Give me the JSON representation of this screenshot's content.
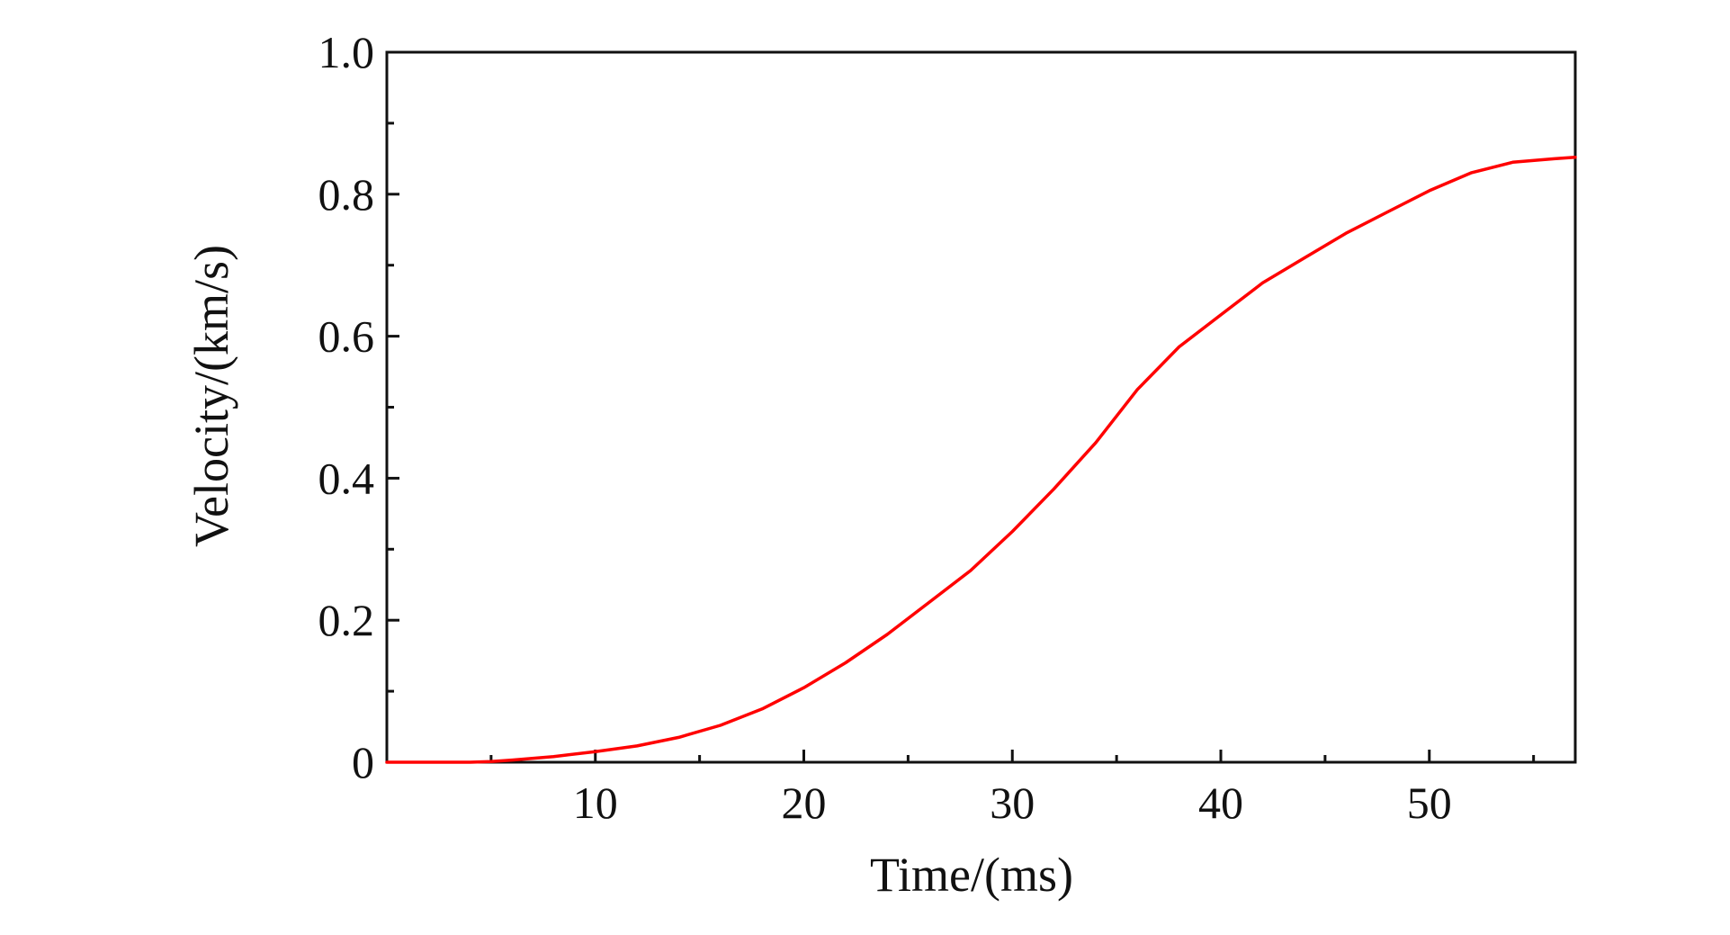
{
  "chart_data": {
    "type": "line",
    "title": "",
    "xlabel": "Time/(ms)",
    "ylabel": "Velocity/(km/s)",
    "xlim": [
      0,
      57
    ],
    "ylim": [
      0,
      1.0
    ],
    "xticks": [
      10,
      20,
      30,
      40,
      50
    ],
    "xtick_labels": [
      "10",
      "20",
      "30",
      "40",
      "50"
    ],
    "x_minor_ticks": [
      5,
      15,
      25,
      35,
      45,
      55
    ],
    "yticks": [
      0,
      0.2,
      0.4,
      0.6,
      0.8,
      1.0
    ],
    "ytick_labels": [
      "0",
      "0.2",
      "0.4",
      "0.6",
      "0.8",
      "1.0"
    ],
    "y_minor_ticks": [
      0.1,
      0.3,
      0.5,
      0.7,
      0.9
    ],
    "grid": false,
    "series": [
      {
        "color": "#ff0000",
        "x": [
          0,
          2,
          4,
          5,
          6,
          8,
          10,
          12,
          14,
          16,
          18,
          20,
          22,
          24,
          26,
          28,
          30,
          32,
          34,
          36,
          38,
          40,
          42,
          44,
          46,
          48,
          50,
          52,
          54,
          56,
          57
        ],
        "y": [
          0,
          0,
          0,
          0.001,
          0.003,
          0.008,
          0.015,
          0.023,
          0.035,
          0.052,
          0.075,
          0.105,
          0.14,
          0.18,
          0.225,
          0.27,
          0.325,
          0.385,
          0.45,
          0.525,
          0.585,
          0.63,
          0.675,
          0.71,
          0.745,
          0.775,
          0.805,
          0.83,
          0.845,
          0.85,
          0.852
        ]
      }
    ]
  }
}
